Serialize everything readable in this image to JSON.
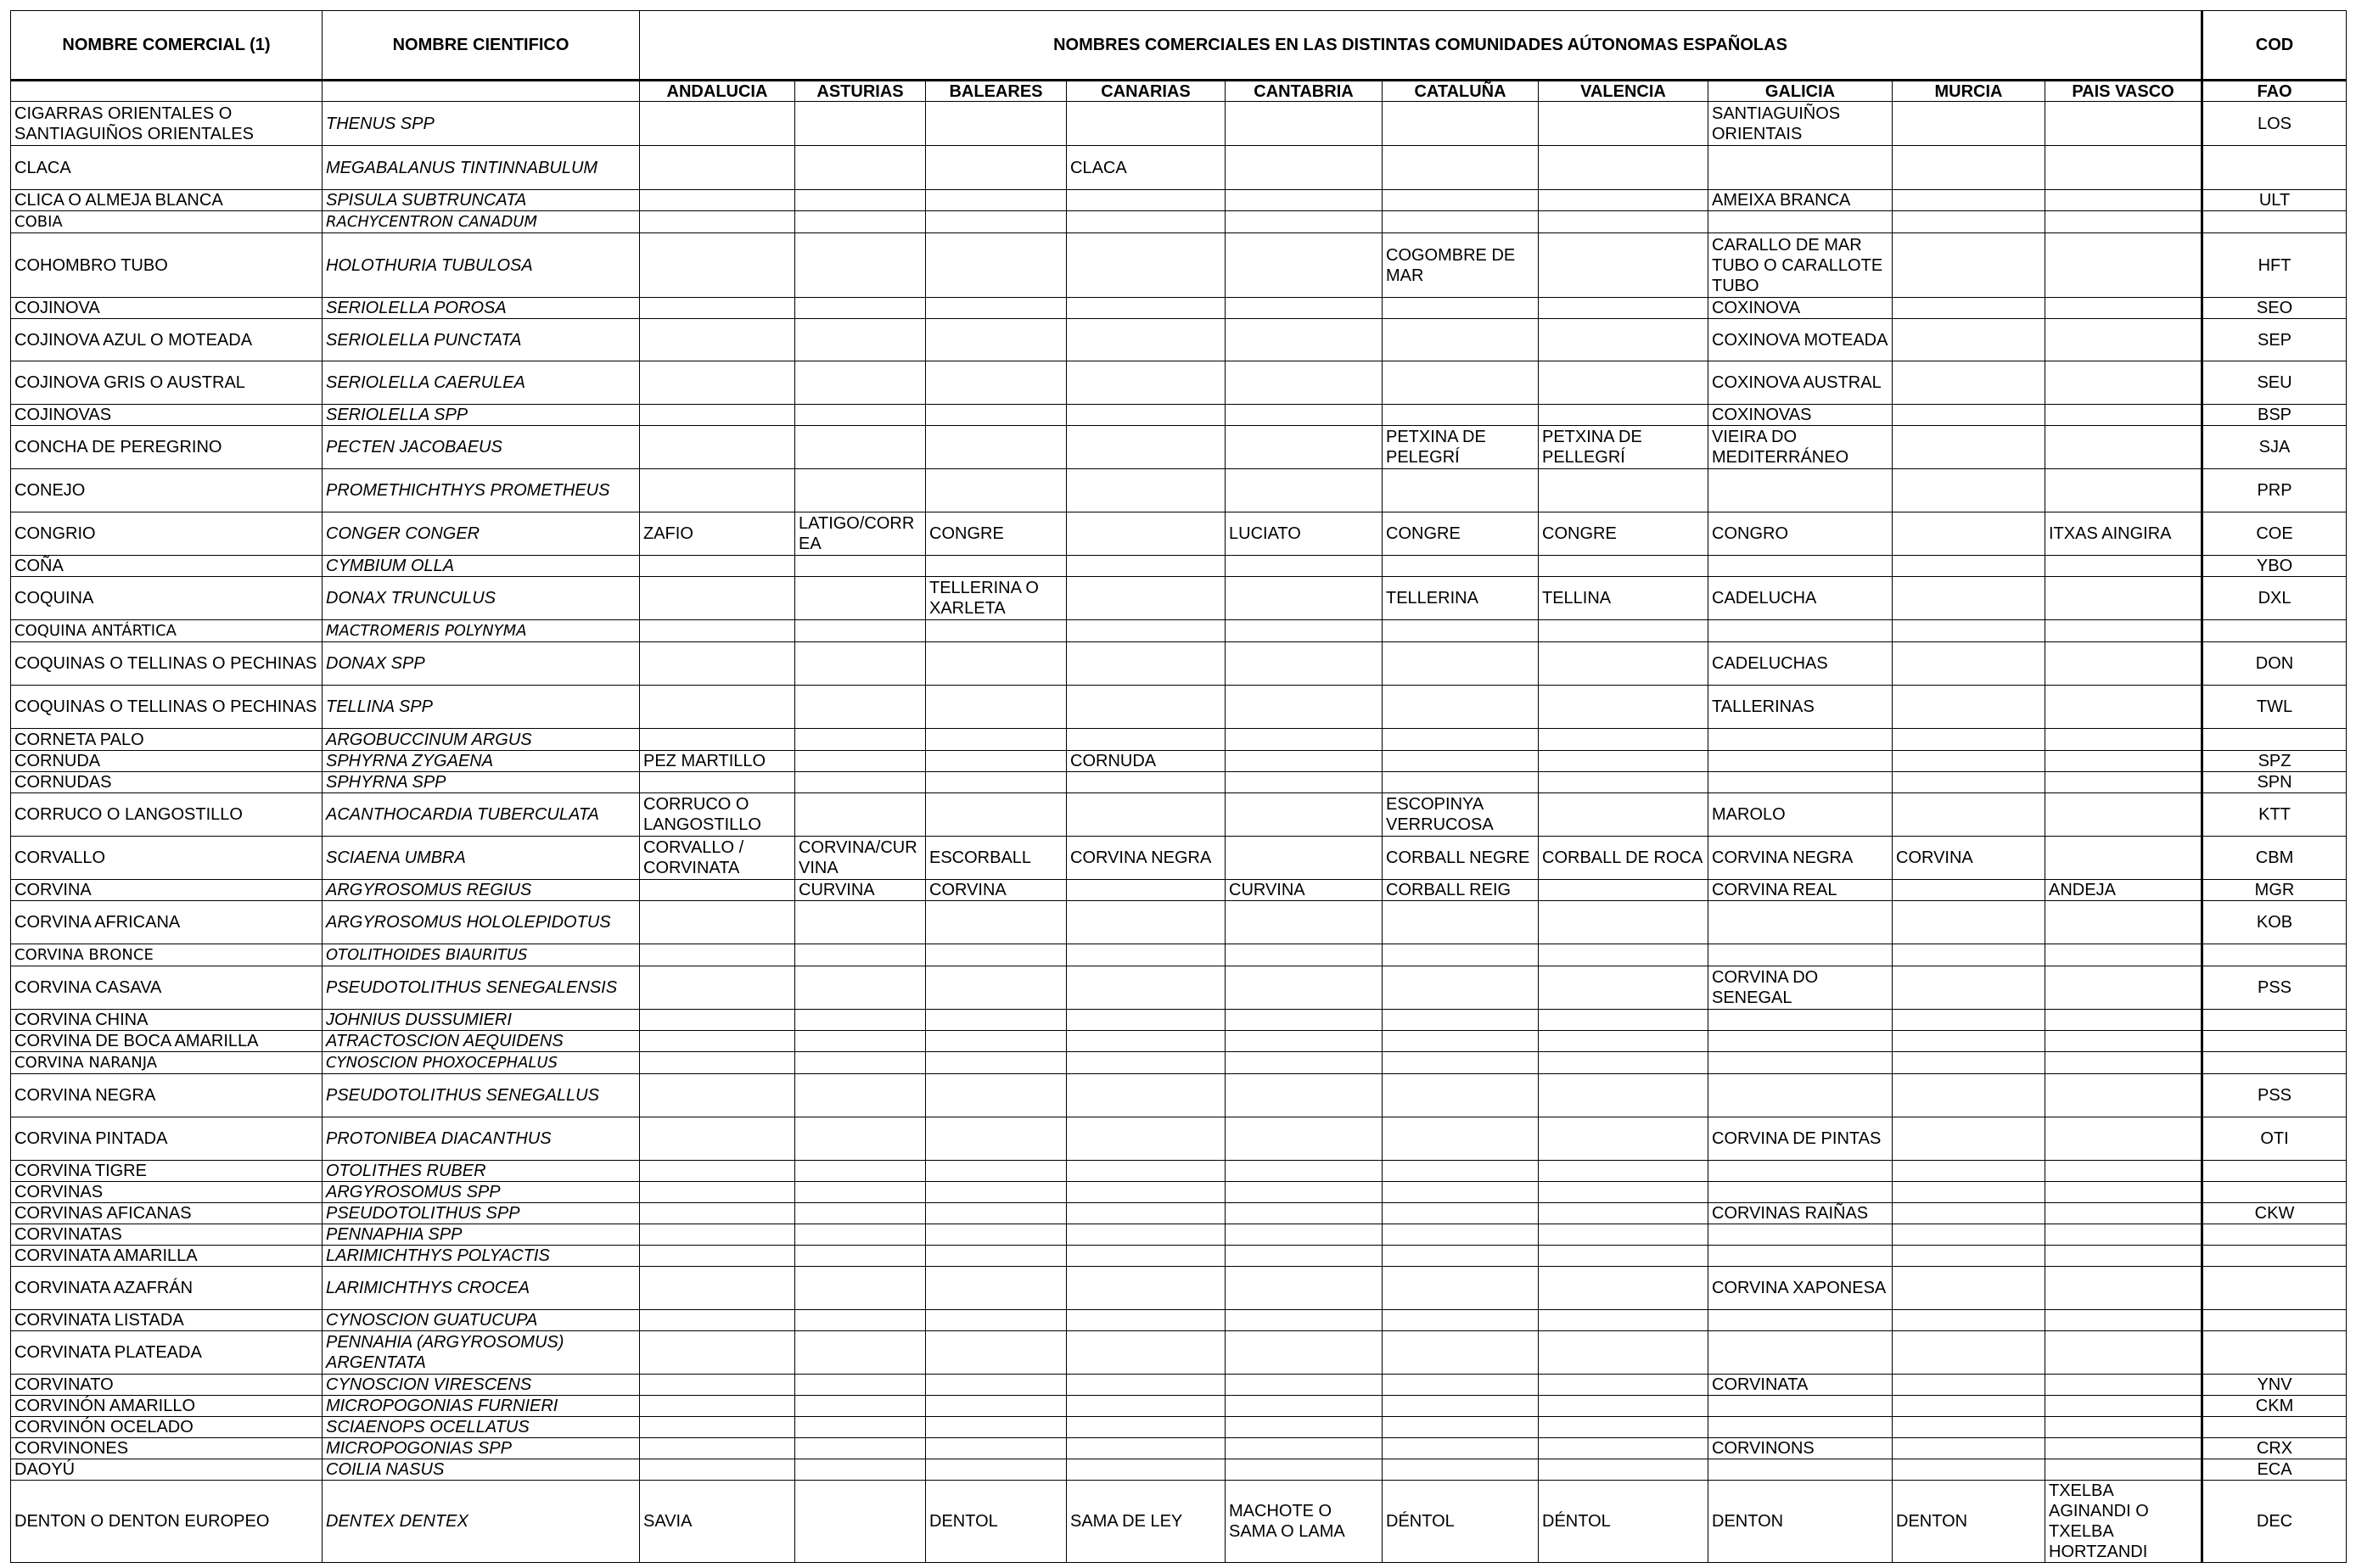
{
  "headers": {
    "nombre_comercial": "NOMBRE COMERCIAL (1)",
    "nombre_cientifico": "NOMBRE CIENTIFICO",
    "comunidades": "NOMBRES COMERCIALES EN LAS DISTINTAS COMUNIDADES AÚTONOMAS ESPAÑOLAS",
    "cod": "COD",
    "fao": "FAO",
    "regions": [
      "ANDALUCIA",
      "ASTURIAS",
      "BALEARES",
      "CANARIAS",
      "CANTABRIA",
      "CATALUÑA",
      "VALENCIA",
      "GALICIA",
      "MURCIA",
      "PAIS VASCO"
    ]
  },
  "rows": [
    {
      "h": 52,
      "hand": false,
      "cells": [
        "CIGARRAS ORIENTALES O SANTIAGUIÑOS ORIENTALES",
        "THENUS SPP",
        "",
        "",
        "",
        "",
        "",
        "",
        "",
        "SANTIAGUIÑOS ORIENTAIS",
        "",
        "",
        "LOS"
      ]
    },
    {
      "h": 52,
      "hand": false,
      "cells": [
        "CLACA",
        "MEGABALANUS TINTINNABULUM",
        "",
        "",
        "",
        "CLACA",
        "",
        "",
        "",
        "",
        "",
        "",
        ""
      ]
    },
    {
      "h": 25,
      "hand": false,
      "cells": [
        "CLICA O ALMEJA BLANCA",
        "SPISULA SUBTRUNCATA",
        "",
        "",
        "",
        "",
        "",
        "",
        "",
        "AMEIXA BRANCA",
        "",
        "",
        "ULT"
      ]
    },
    {
      "h": 26,
      "hand": true,
      "cells": [
        "COBIA",
        "RACHYCENTRON CANADUM",
        "",
        "",
        "",
        "",
        "",
        "",
        "",
        "",
        "",
        "",
        ""
      ]
    },
    {
      "h": 76,
      "hand": false,
      "cells": [
        "COHOMBRO TUBO",
        "HOLOTHURIA TUBULOSA",
        "",
        "",
        "",
        "",
        "",
        "COGOMBRE DE MAR",
        "",
        "CARALLO DE MAR TUBO O CARALLOTE TUBO",
        "",
        "",
        "HFT"
      ]
    },
    {
      "h": 25,
      "hand": false,
      "cells": [
        "COJINOVA",
        "SERIOLELLA POROSA",
        "",
        "",
        "",
        "",
        "",
        "",
        "",
        "COXINOVA",
        "",
        "",
        "SEO"
      ]
    },
    {
      "h": 50,
      "hand": false,
      "cells": [
        "COJINOVA AZUL O MOTEADA",
        "SERIOLELLA PUNCTATA",
        "",
        "",
        "",
        "",
        "",
        "",
        "",
        "COXINOVA MOTEADA",
        "",
        "",
        "SEP"
      ]
    },
    {
      "h": 51,
      "hand": false,
      "cells": [
        "COJINOVA GRIS O AUSTRAL",
        "SERIOLELLA CAERULEA",
        "",
        "",
        "",
        "",
        "",
        "",
        "",
        "COXINOVA AUSTRAL",
        "",
        "",
        "SEU"
      ]
    },
    {
      "h": 25,
      "hand": false,
      "cells": [
        "COJINOVAS",
        "SERIOLELLA SPP",
        "",
        "",
        "",
        "",
        "",
        "",
        "",
        "COXINOVAS",
        "",
        "",
        "BSP"
      ]
    },
    {
      "h": 51,
      "hand": false,
      "cells": [
        "CONCHA DE PEREGRINO",
        "PECTEN JACOBAEUS",
        "",
        "",
        "",
        "",
        "",
        "PETXINA DE PELEGRÍ",
        "PETXINA DE PELLEGRÍ",
        "VIEIRA DO MEDITERRÁNEO",
        "",
        "",
        "SJA"
      ]
    },
    {
      "h": 51,
      "hand": false,
      "cells": [
        "CONEJO",
        "PROMETHICHTHYS PROMETHEUS",
        "",
        "",
        "",
        "",
        "",
        "",
        "",
        "",
        "",
        "",
        "PRP"
      ]
    },
    {
      "h": 51,
      "hand": false,
      "cells": [
        "CONGRIO",
        "CONGER CONGER",
        "ZAFIO",
        "LATIGO/CORREA",
        "CONGRE",
        "",
        "LUCIATO",
        "CONGRE",
        "CONGRE",
        "CONGRO",
        "",
        "ITXAS AINGIRA",
        "COE"
      ]
    },
    {
      "h": 25,
      "hand": false,
      "cells": [
        "COÑA",
        "CYMBIUM OLLA",
        "",
        "",
        "",
        "",
        "",
        "",
        "",
        "",
        "",
        "",
        "YBO"
      ]
    },
    {
      "h": 51,
      "hand": false,
      "cells": [
        "COQUINA",
        "DONAX TRUNCULUS",
        "",
        "",
        "TELLERINA O XARLETA",
        "",
        "",
        "TELLERINA",
        "TELLINA",
        "CADELUCHA",
        "",
        "",
        "DXL"
      ]
    },
    {
      "h": 26,
      "hand": true,
      "cells": [
        "COQUINA ANTÁRTICA",
        "MACTROMERIS POLYNYMA",
        "",
        "",
        "",
        "",
        "",
        "",
        "",
        "",
        "",
        "",
        ""
      ]
    },
    {
      "h": 51,
      "hand": false,
      "cells": [
        "COQUINAS O TELLINAS O PECHINAS",
        "DONAX SPP",
        "",
        "",
        "",
        "",
        "",
        "",
        "",
        "CADELUCHAS",
        "",
        "",
        "DON"
      ]
    },
    {
      "h": 51,
      "hand": false,
      "cells": [
        "COQUINAS O TELLINAS O PECHINAS",
        "TELLINA SPP",
        "",
        "",
        "",
        "",
        "",
        "",
        "",
        "TALLERINAS",
        "",
        "",
        "TWL"
      ]
    },
    {
      "h": 26,
      "hand": false,
      "cells": [
        "CORNETA PALO",
        "ARGOBUCCINUM ARGUS",
        "",
        "",
        "",
        "",
        "",
        "",
        "",
        "",
        "",
        "",
        ""
      ]
    },
    {
      "h": 25,
      "hand": false,
      "cells": [
        "CORNUDA",
        "SPHYRNA ZYGAENA",
        "PEZ MARTILLO",
        "",
        "",
        "CORNUDA",
        "",
        "",
        "",
        "",
        "",
        "",
        "SPZ"
      ]
    },
    {
      "h": 25,
      "hand": false,
      "cells": [
        "CORNUDAS",
        "SPHYRNA SPP",
        "",
        "",
        "",
        "",
        "",
        "",
        "",
        "",
        "",
        "",
        "SPN"
      ]
    },
    {
      "h": 51,
      "hand": false,
      "cells": [
        "CORRUCO O LANGOSTILLO",
        "ACANTHOCARDIA TUBERCULATA",
        "CORRUCO O LANGOSTILLO",
        "",
        "",
        "",
        "",
        "ESCOPINYA VERRUCOSA",
        "",
        "MAROLO",
        "",
        "",
        "KTT"
      ]
    },
    {
      "h": 51,
      "hand": false,
      "cells": [
        "CORVALLO",
        "SCIAENA UMBRA",
        "CORVALLO / CORVINATA",
        "CORVINA/CURVINA",
        "ESCORBALL",
        "CORVINA NEGRA",
        "",
        "CORBALL NEGRE",
        "CORBALL DE ROCA",
        "CORVINA NEGRA",
        "CORVINA",
        "",
        "CBM"
      ]
    },
    {
      "h": 25,
      "hand": false,
      "cells": [
        "CORVINA",
        "ARGYROSOMUS REGIUS",
        "",
        "CURVINA",
        "CORVINA",
        "",
        "CURVINA",
        "CORBALL REIG",
        "",
        "CORVINA REAL",
        "",
        "ANDEJA",
        "MGR"
      ]
    },
    {
      "h": 51,
      "hand": false,
      "cells": [
        "CORVINA AFRICANA",
        "ARGYROSOMUS HOLOLEPIDOTUS",
        "",
        "",
        "",
        "",
        "",
        "",
        "",
        "",
        "",
        "",
        "KOB"
      ]
    },
    {
      "h": 26,
      "hand": true,
      "cells": [
        "CORVINA BRONCE",
        "OTOLITHOIDES BIAURITUS",
        "",
        "",
        "",
        "",
        "",
        "",
        "",
        "",
        "",
        "",
        ""
      ]
    },
    {
      "h": 51,
      "hand": false,
      "cells": [
        "CORVINA CASAVA",
        "PSEUDOTOLITHUS SENEGALENSIS",
        "",
        "",
        "",
        "",
        "",
        "",
        "",
        "CORVINA DO SENEGAL",
        "",
        "",
        "PSS"
      ]
    },
    {
      "h": 25,
      "hand": false,
      "cells": [
        "CORVINA CHINA",
        "JOHNIUS DUSSUMIERI",
        "",
        "",
        "",
        "",
        "",
        "",
        "",
        "",
        "",
        "",
        ""
      ]
    },
    {
      "h": 25,
      "hand": false,
      "cells": [
        "CORVINA DE BOCA AMARILLA",
        "ATRACTOSCION AEQUIDENS",
        "",
        "",
        "",
        "",
        "",
        "",
        "",
        "",
        "",
        "",
        ""
      ]
    },
    {
      "h": 26,
      "hand": true,
      "cells": [
        "CORVINA NARANJA",
        "CYNOSCION PHOXOCEPHALUS",
        "",
        "",
        "",
        "",
        "",
        "",
        "",
        "",
        "",
        "",
        ""
      ]
    },
    {
      "h": 51,
      "hand": false,
      "cells": [
        "CORVINA NEGRA",
        "PSEUDOTOLITHUS SENEGALLUS",
        "",
        "",
        "",
        "",
        "",
        "",
        "",
        "",
        "",
        "",
        "PSS"
      ]
    },
    {
      "h": 51,
      "hand": false,
      "cells": [
        "CORVINA PINTADA",
        "PROTONIBEA DIACANTHUS",
        "",
        "",
        "",
        "",
        "",
        "",
        "",
        "CORVINA DE PINTAS",
        "",
        "",
        "OTI"
      ]
    },
    {
      "h": 25,
      "hand": false,
      "cells": [
        "CORVINA TIGRE",
        "OTOLITHES RUBER",
        "",
        "",
        "",
        "",
        "",
        "",
        "",
        "",
        "",
        "",
        ""
      ]
    },
    {
      "h": 25,
      "hand": false,
      "cells": [
        "CORVINAS",
        "ARGYROSOMUS SPP",
        "",
        "",
        "",
        "",
        "",
        "",
        "",
        "",
        "",
        "",
        ""
      ]
    },
    {
      "h": 25,
      "hand": false,
      "cells": [
        "CORVINAS AFICANAS",
        "PSEUDOTOLITHUS SPP",
        "",
        "",
        "",
        "",
        "",
        "",
        "",
        "CORVINAS RAIÑAS",
        "",
        "",
        "CKW"
      ]
    },
    {
      "h": 25,
      "hand": false,
      "cells": [
        "CORVINATAS",
        "PENNAPHIA SPP",
        "",
        "",
        "",
        "",
        "",
        "",
        "",
        "",
        "",
        "",
        ""
      ]
    },
    {
      "h": 25,
      "hand": false,
      "cells": [
        "CORVINATA AMARILLA",
        "LARIMICHTHYS POLYACTIS",
        "",
        "",
        "",
        "",
        "",
        "",
        "",
        "",
        "",
        "",
        ""
      ]
    },
    {
      "h": 51,
      "hand": false,
      "cells": [
        "CORVINATA AZAFRÁN",
        "LARIMICHTHYS CROCEA",
        "",
        "",
        "",
        "",
        "",
        "",
        "",
        "CORVINA XAPONESA",
        "",
        "",
        ""
      ]
    },
    {
      "h": 25,
      "hand": false,
      "cells": [
        "CORVINATA LISTADA",
        "CYNOSCION GUATUCUPA",
        "",
        "",
        "",
        "",
        "",
        "",
        "",
        "",
        "",
        "",
        ""
      ]
    },
    {
      "h": 51,
      "hand": false,
      "cells": [
        "CORVINATA PLATEADA",
        "PENNAHIA (ARGYROSOMUS) ARGENTATA",
        "",
        "",
        "",
        "",
        "",
        "",
        "",
        "",
        "",
        "",
        ""
      ]
    },
    {
      "h": 25,
      "hand": false,
      "cells": [
        "CORVINATO",
        "CYNOSCION VIRESCENS",
        "",
        "",
        "",
        "",
        "",
        "",
        "",
        "CORVINATA",
        "",
        "",
        "YNV"
      ]
    },
    {
      "h": 25,
      "hand": false,
      "cells": [
        "CORVINÓN AMARILLO",
        "MICROPOGONIAS FURNIERI",
        "",
        "",
        "",
        "",
        "",
        "",
        "",
        "",
        "",
        "",
        "CKM"
      ]
    },
    {
      "h": 25,
      "hand": false,
      "cells": [
        "CORVINÓN OCELADO",
        "SCIAENOPS OCELLATUS",
        "",
        "",
        "",
        "",
        "",
        "",
        "",
        "",
        "",
        "",
        ""
      ]
    },
    {
      "h": 25,
      "hand": false,
      "cells": [
        "CORVINONES",
        "MICROPOGONIAS SPP",
        "",
        "",
        "",
        "",
        "",
        "",
        "",
        "CORVINONS",
        "",
        "",
        "CRX"
      ]
    },
    {
      "h": 25,
      "hand": false,
      "cells": [
        "DAOYÚ",
        "COILIA NASUS",
        "",
        "",
        "",
        "",
        "",
        "",
        "",
        "",
        "",
        "",
        "ECA"
      ]
    },
    {
      "h": 72,
      "hand": false,
      "cells": [
        "DENTON  O DENTON EUROPEO",
        "DENTEX DENTEX",
        "SAVIA",
        "",
        "DENTOL",
        "SAMA DE LEY",
        "MACHOTE O SAMA O LAMA",
        "DÉNTOL",
        "DÉNTOL",
        "DENTON",
        "DENTON",
        "TXELBA AGINANDI O TXELBA HORTZANDI",
        "DEC"
      ]
    }
  ]
}
